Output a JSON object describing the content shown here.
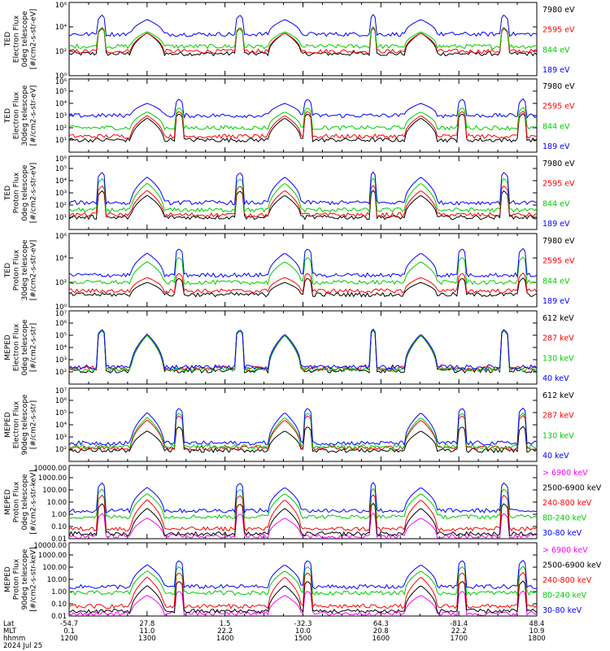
{
  "colors": {
    "blue": "#0000ff",
    "red": "#ff0000",
    "green": "#00cc00",
    "black": "#000000",
    "magenta": "#ff00ff"
  },
  "footer": {
    "row_labels": [
      "Lat",
      "MLT",
      "hhmm"
    ],
    "date": "2024 Jul 25",
    "columns": [
      {
        "lat": "-54.7",
        "mlt": "0.1",
        "hhmm": "1200"
      },
      {
        "lat": "27.8",
        "mlt": "11.0",
        "hhmm": "1300"
      },
      {
        "lat": "1.5",
        "mlt": "22.2",
        "hhmm": "1400"
      },
      {
        "lat": "-32.3",
        "mlt": "10.0",
        "hhmm": "1500"
      },
      {
        "lat": "64.3",
        "mlt": "20.8",
        "hhmm": "1600"
      },
      {
        "lat": "-81.4",
        "mlt": "22.2",
        "hhmm": "1700"
      },
      {
        "lat": "48.4",
        "mlt": "10.9",
        "hhmm": "1800"
      }
    ]
  },
  "chart_data": [
    {
      "type": "line",
      "panel": 1,
      "ylabel": [
        "TED",
        "Electron Flux",
        "0deg telescope",
        "[#/cm2-s-str-eV]"
      ],
      "yscale": "log",
      "ylim": [
        1,
        1000000
      ],
      "ytick_labels": [
        "10⁰",
        "10²",
        "10⁴",
        "10⁶"
      ],
      "ytick_values": [
        1,
        100,
        10000,
        1000000
      ],
      "xlim": [
        "1200",
        "1800"
      ],
      "series": [
        {
          "name": "7980 eV",
          "color": "#000000",
          "base": 1.8,
          "peak": 3.5
        },
        {
          "name": "2595 eV",
          "color": "#ff0000",
          "base": 2.0,
          "peak": 3.5
        },
        {
          "name": "844 eV",
          "color": "#00cc00",
          "base": 2.4,
          "peak": 3.6
        },
        {
          "name": "189 eV",
          "color": "#0000ff",
          "base": 3.4,
          "peak": 4.6
        }
      ]
    },
    {
      "type": "line",
      "panel": 2,
      "ylabel": [
        "TED",
        "Electron Flux",
        "30deg telescope",
        "[#/cm2-s-str-eV]"
      ],
      "yscale": "log",
      "ylim": [
        1,
        1000000
      ],
      "ytick_labels": [
        "10¹",
        "10²",
        "10³",
        "10⁴",
        "10⁵",
        "10⁶"
      ],
      "ytick_values": [
        10,
        100,
        1000,
        10000,
        100000,
        1000000
      ],
      "xlim": [
        "1200",
        "1800"
      ],
      "series": [
        {
          "name": "7980 eV",
          "color": "#000000",
          "base": 1.0,
          "peak": 2.8
        },
        {
          "name": "2595 eV",
          "color": "#ff0000",
          "base": 1.3,
          "peak": 3.0
        },
        {
          "name": "844 eV",
          "color": "#00cc00",
          "base": 2.0,
          "peak": 3.3
        },
        {
          "name": "189 eV",
          "color": "#0000ff",
          "base": 3.0,
          "peak": 4.0
        }
      ]
    },
    {
      "type": "line",
      "panel": 3,
      "ylabel": [
        "TED",
        "Proton Flux",
        "0deg telescope",
        "[#/cm2-s-str-eV]"
      ],
      "yscale": "log",
      "ylim": [
        1,
        1000000
      ],
      "ytick_labels": [
        "10¹",
        "10²",
        "10³",
        "10⁴",
        "10⁵",
        "10⁶"
      ],
      "ytick_values": [
        10,
        100,
        1000,
        10000,
        100000,
        1000000
      ],
      "xlim": [
        "1200",
        "1800"
      ],
      "series": [
        {
          "name": "7980 eV",
          "color": "#000000",
          "base": 1.0,
          "peak": 2.8
        },
        {
          "name": "2595 eV",
          "color": "#ff0000",
          "base": 1.2,
          "peak": 3.2
        },
        {
          "name": "844 eV",
          "color": "#00cc00",
          "base": 1.6,
          "peak": 3.8
        },
        {
          "name": "189 eV",
          "color": "#0000ff",
          "base": 2.2,
          "peak": 4.3
        }
      ]
    },
    {
      "type": "line",
      "panel": 4,
      "ylabel": [
        "TED",
        "Proton Flux",
        "30deg telescope",
        "[#/cm2-s-str-eV]"
      ],
      "yscale": "log",
      "ylim": [
        1,
        1000000
      ],
      "ytick_labels": [
        "10⁰",
        "10²",
        "10⁴",
        "10⁶"
      ],
      "ytick_values": [
        1,
        100,
        10000,
        1000000
      ],
      "xlim": [
        "1200",
        "1800"
      ],
      "series": [
        {
          "name": "7980 eV",
          "color": "#000000",
          "base": 1.0,
          "peak": 2.0
        },
        {
          "name": "2595 eV",
          "color": "#ff0000",
          "base": 1.3,
          "peak": 2.4
        },
        {
          "name": "844 eV",
          "color": "#00cc00",
          "base": 2.0,
          "peak": 3.7
        },
        {
          "name": "189 eV",
          "color": "#0000ff",
          "base": 2.6,
          "peak": 4.4
        }
      ]
    },
    {
      "type": "line",
      "panel": 5,
      "ylabel": [
        "MEPED",
        "Electron Flux",
        "0deg telescope",
        "[#/cm2-s-str]"
      ],
      "yscale": "log",
      "ylim": [
        10,
        10000000
      ],
      "ytick_labels": [
        "10²",
        "10³",
        "10⁴",
        "10⁵",
        "10⁶",
        "10⁷"
      ],
      "ytick_values": [
        100,
        1000,
        10000,
        100000,
        1000000,
        10000000
      ],
      "xlim": [
        "1200",
        "1800"
      ],
      "series": [
        {
          "name": "612 keV",
          "color": "#000000",
          "base": 2.1,
          "peak": 5.0
        },
        {
          "name": "287 keV",
          "color": "#ff0000",
          "base": 2.3,
          "peak": 5.0
        },
        {
          "name": "130 keV",
          "color": "#00cc00",
          "base": 2.2,
          "peak": 5.0
        },
        {
          "name": "40 keV",
          "color": "#0000ff",
          "base": 2.4,
          "peak": 5.1
        }
      ]
    },
    {
      "type": "line",
      "panel": 6,
      "ylabel": [
        "MEPED",
        "Electron Flux",
        "90deg telescope",
        "[#/cm2-s-str]"
      ],
      "yscale": "log",
      "ylim": [
        10,
        10000000
      ],
      "ytick_labels": [
        "10²",
        "10³",
        "10⁴",
        "10⁵",
        "10⁶",
        "10⁷"
      ],
      "ytick_values": [
        100,
        1000,
        10000,
        100000,
        1000000,
        10000000
      ],
      "xlim": [
        "1200",
        "1800"
      ],
      "series": [
        {
          "name": "612 keV",
          "color": "#000000",
          "base": 1.9,
          "peak": 3.5
        },
        {
          "name": "287 keV",
          "color": "#ff0000",
          "base": 2.1,
          "peak": 4.4
        },
        {
          "name": "130 keV",
          "color": "#00cc00",
          "base": 2.2,
          "peak": 4.6
        },
        {
          "name": "40 keV",
          "color": "#0000ff",
          "base": 2.5,
          "peak": 5.0
        }
      ]
    },
    {
      "type": "line",
      "panel": 7,
      "ylabel": [
        "MEPED",
        "Proton Flux",
        "0deg telescope",
        "[#/cm2-s-str-keV]"
      ],
      "yscale": "log",
      "ylim": [
        0.01,
        10000
      ],
      "ytick_labels": [
        "0.01",
        "0.10",
        "1.00",
        "10.00",
        "100.00",
        "1000.00",
        "10000.00"
      ],
      "ytick_values": [
        0.01,
        0.1,
        1,
        10,
        100,
        1000,
        10000
      ],
      "xlim": [
        "1200",
        "1800"
      ],
      "series": [
        {
          "name": "> 6900 keV",
          "color": "#ff00ff",
          "base": -1.8,
          "peak": -0.3
        },
        {
          "name": "2500-6900 keV",
          "color": "#000000",
          "base": -1.6,
          "peak": 0.5
        },
        {
          "name": "240-800 keV",
          "color": "#ff0000",
          "base": -1.2,
          "peak": 1.2
        },
        {
          "name": "80-240 keV",
          "color": "#00cc00",
          "base": -0.2,
          "peak": 1.7
        },
        {
          "name": "30-80 keV",
          "color": "#0000ff",
          "base": 0.3,
          "peak": 2.2
        }
      ]
    },
    {
      "type": "line",
      "panel": 8,
      "ylabel": [
        "MEPED",
        "Proton Flux",
        "90deg telescope",
        "[#/cm2-s-str-keV]"
      ],
      "yscale": "log",
      "ylim": [
        0.01,
        10000
      ],
      "ytick_labels": [
        "0.01",
        "0.10",
        "1.00",
        "10.00",
        "100.00",
        "1000.00",
        "10000.00"
      ],
      "ytick_values": [
        0.01,
        0.1,
        1,
        10,
        100,
        1000,
        10000
      ],
      "xlim": [
        "1200",
        "1800"
      ],
      "series": [
        {
          "name": "> 6900 keV",
          "color": "#ff00ff",
          "base": -1.8,
          "peak": -0.3
        },
        {
          "name": "2500-6900 keV",
          "color": "#000000",
          "base": -1.6,
          "peak": 0.5
        },
        {
          "name": "240-800 keV",
          "color": "#ff0000",
          "base": -1.2,
          "peak": 1.2
        },
        {
          "name": "80-240 keV",
          "color": "#00cc00",
          "base": -0.1,
          "peak": 1.7
        },
        {
          "name": "30-80 keV",
          "color": "#0000ff",
          "base": 0.4,
          "peak": 2.2
        }
      ]
    }
  ]
}
